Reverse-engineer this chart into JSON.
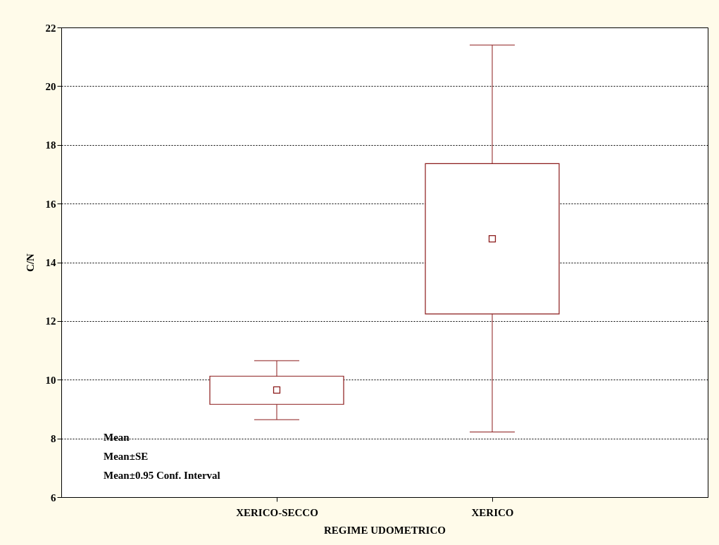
{
  "chart_data": {
    "type": "box",
    "xlabel": "REGIME UDOMETRICO",
    "ylabel": "C/N",
    "categories": [
      "XERICO-SECCO",
      "XERICO"
    ],
    "series": [
      {
        "color": "#8b1a1a",
        "boxes": [
          {
            "low": 8.64,
            "q1": 9.16,
            "median": 9.65,
            "q3": 10.12,
            "high": 10.65
          },
          {
            "low": 8.22,
            "q1": 12.24,
            "median": 14.8,
            "q3": 17.36,
            "high": 21.4
          }
        ]
      }
    ],
    "ylim": [
      6,
      22
    ],
    "yticks": [
      6,
      8,
      10,
      12,
      14,
      16,
      18,
      20,
      22
    ],
    "grid": "y",
    "marker": "square",
    "annotations": [
      "Mean",
      "Mean±SE",
      "Mean±0.95 Conf. Interval"
    ]
  }
}
